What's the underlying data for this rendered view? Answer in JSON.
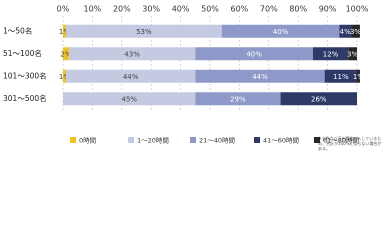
{
  "chart_data": {
    "type": "stacked-bar-horizontal",
    "categories": [
      "1～50名",
      "51～100名",
      "101～300名",
      "301～500名"
    ],
    "series": [
      {
        "name": "0時間",
        "color": "#f2c318",
        "values": [
          1,
          2,
          1,
          0
        ],
        "value_labels": [
          "1%",
          "2%",
          "1%",
          null
        ]
      },
      {
        "name": "1～20時間",
        "color": "#c5cae2",
        "values": [
          53,
          43,
          44,
          45
        ],
        "value_labels": [
          "53%",
          "43%",
          "44%",
          "45%"
        ]
      },
      {
        "name": "21～40時間",
        "color": "#8e98c9",
        "values": [
          40,
          40,
          44,
          29
        ],
        "value_labels": [
          "40%",
          "40%",
          "44%",
          "29%"
        ]
      },
      {
        "name": "41～60時間",
        "color": "#2e3968",
        "values": [
          4,
          12,
          11,
          26
        ],
        "value_labels": [
          "4%",
          "12%",
          "11%",
          "26%"
        ]
      },
      {
        "name": "61～80時間",
        "color": "#262626",
        "values": [
          3,
          3,
          1,
          0
        ],
        "value_labels": [
          "3%",
          "3%",
          "1%",
          null
        ]
      }
    ],
    "xlim": [
      0,
      100
    ],
    "xticks": [
      {
        "value": 0,
        "label": "0%"
      },
      {
        "value": 10,
        "label": "10%"
      },
      {
        "value": 20,
        "label": "20%"
      },
      {
        "value": 30,
        "label": "30%"
      },
      {
        "value": 40,
        "label": "40%"
      },
      {
        "value": 50,
        "label": "50%"
      },
      {
        "value": 60,
        "label": "60%"
      },
      {
        "value": 70,
        "label": "70%"
      },
      {
        "value": 80,
        "label": "80%"
      },
      {
        "value": 90,
        "label": "90%"
      },
      {
        "value": 100,
        "label": "100%"
      }
    ],
    "grid": true,
    "legend": "bottom",
    "note": "※小数点以下を四捨五入しているため、合計が100%にならない場合がある。"
  }
}
